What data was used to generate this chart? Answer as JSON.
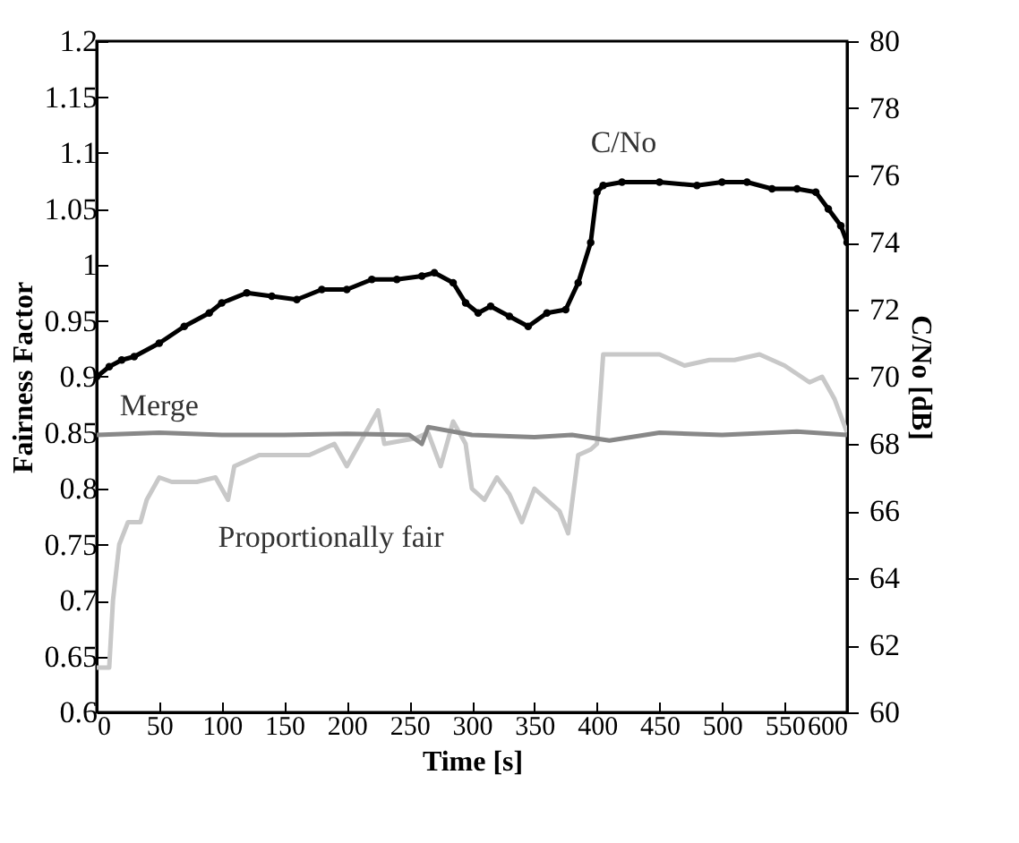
{
  "chart_data": {
    "type": "line",
    "xlabel": "Time [s]",
    "ylabel": "Fairness Factor",
    "y2label": "C/No [dB]",
    "xlim": [
      0,
      600
    ],
    "xticks": [
      0,
      50,
      100,
      150,
      200,
      250,
      300,
      350,
      400,
      450,
      500,
      550,
      600
    ],
    "ylim": [
      0.6,
      1.2
    ],
    "yticks": [
      0.6,
      0.65,
      0.7,
      0.75,
      0.8,
      0.85,
      0.9,
      0.95,
      1,
      1.05,
      1.1,
      1.15,
      1.2
    ],
    "y2lim": [
      60,
      80
    ],
    "y2ticks": [
      60,
      62,
      64,
      66,
      68,
      70,
      72,
      74,
      76,
      78,
      80
    ],
    "grid": false,
    "legend": false,
    "series": [
      {
        "name": "Proportionally fair",
        "color": "#c8c8c8",
        "marker": "none",
        "x": [
          0,
          10,
          13,
          18,
          25,
          35,
          40,
          50,
          60,
          80,
          95,
          105,
          110,
          130,
          150,
          170,
          190,
          200,
          210,
          225,
          230,
          255,
          265,
          275,
          285,
          295,
          300,
          310,
          320,
          330,
          340,
          350,
          360,
          370,
          377,
          385,
          395,
          400,
          405,
          430,
          450,
          470,
          490,
          510,
          530,
          550,
          570,
          580,
          590,
          600
        ],
        "values": [
          0.64,
          0.64,
          0.7,
          0.75,
          0.77,
          0.77,
          0.79,
          0.81,
          0.806,
          0.806,
          0.81,
          0.79,
          0.82,
          0.83,
          0.83,
          0.83,
          0.84,
          0.82,
          0.84,
          0.87,
          0.84,
          0.845,
          0.85,
          0.82,
          0.86,
          0.84,
          0.8,
          0.79,
          0.81,
          0.795,
          0.77,
          0.8,
          0.79,
          0.78,
          0.76,
          0.83,
          0.835,
          0.84,
          0.92,
          0.92,
          0.92,
          0.91,
          0.915,
          0.915,
          0.92,
          0.91,
          0.895,
          0.9,
          0.88,
          0.85
        ]
      },
      {
        "name": "Merge",
        "color": "#888888",
        "marker": "none",
        "x": [
          0,
          50,
          100,
          150,
          200,
          250,
          260,
          265,
          300,
          350,
          380,
          410,
          450,
          500,
          560,
          600
        ],
        "values": [
          0.848,
          0.85,
          0.848,
          0.848,
          0.849,
          0.848,
          0.84,
          0.855,
          0.848,
          0.846,
          0.848,
          0.843,
          0.85,
          0.848,
          0.851,
          0.848
        ]
      },
      {
        "name": "C/No",
        "color": "#000000",
        "marker": "circle",
        "axis": "y2",
        "x": [
          0,
          10,
          20,
          30,
          50,
          70,
          90,
          100,
          120,
          140,
          160,
          180,
          200,
          220,
          240,
          260,
          270,
          285,
          295,
          305,
          315,
          330,
          345,
          360,
          375,
          385,
          395,
          400,
          405,
          420,
          450,
          480,
          500,
          520,
          540,
          560,
          575,
          585,
          595,
          600
        ],
        "values": [
          70,
          70.3,
          70.5,
          70.6,
          71,
          71.5,
          71.9,
          72.2,
          72.5,
          72.4,
          72.3,
          72.6,
          72.6,
          72.9,
          72.9,
          73,
          73.1,
          72.8,
          72.2,
          71.9,
          72.1,
          71.8,
          71.5,
          71.9,
          72,
          72.8,
          74,
          75.5,
          75.7,
          75.8,
          75.8,
          75.7,
          75.8,
          75.8,
          75.6,
          75.6,
          75.5,
          75,
          74.5,
          74
        ]
      }
    ]
  }
}
